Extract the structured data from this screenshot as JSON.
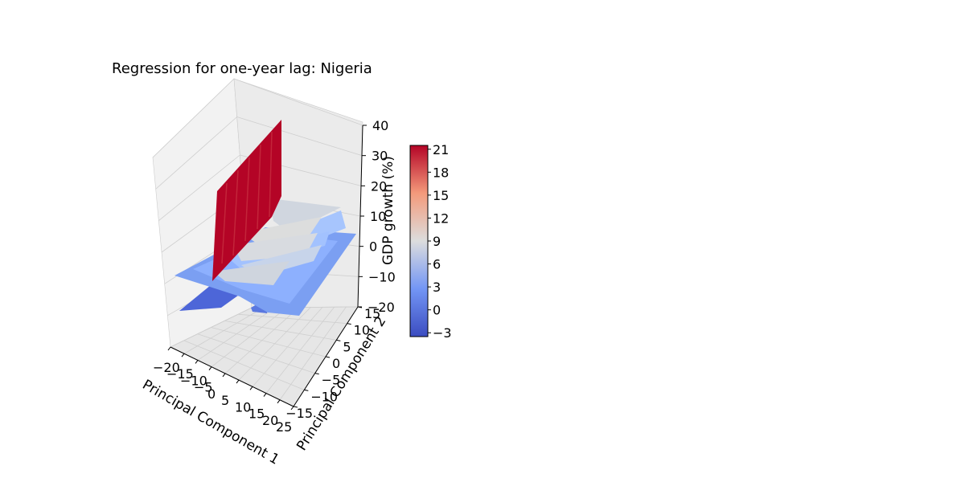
{
  "chart_data": {
    "type": "surface3d",
    "title": "Regression for one-year lag: Nigeria",
    "xlabel": "Principal Component 1",
    "ylabel": "Principal Component 2",
    "zlabel": "GDP growth (%)",
    "xlim": [
      -20,
      25
    ],
    "ylim": [
      -15,
      15
    ],
    "zlim": [
      -20,
      40
    ],
    "x_ticks": [
      "−20",
      "−15",
      "−10",
      "−5",
      "0",
      "5",
      "10",
      "15",
      "20",
      "25"
    ],
    "y_ticks": [
      "−15",
      "−10",
      "−5",
      "0",
      "5",
      "10",
      "15"
    ],
    "z_ticks": [
      "−20",
      "−10",
      "0",
      "10",
      "20",
      "30",
      "40"
    ],
    "grid": true,
    "colormap": "coolwarm",
    "colorbar": {
      "min": -3.5,
      "max": 21.5,
      "ticks": [
        "−3",
        "0",
        "3",
        "6",
        "9",
        "12",
        "15",
        "18",
        "21"
      ]
    },
    "surface_regions": [
      {
        "description": "spike ridge",
        "x_range": [
          -10,
          0
        ],
        "y_range": [
          -5,
          12
        ],
        "z_value": 21
      },
      {
        "description": "plateau",
        "x_range": [
          -5,
          20
        ],
        "y_range": [
          -10,
          15
        ],
        "z_value": 8
      },
      {
        "description": "base sheet",
        "x_range": [
          -20,
          25
        ],
        "y_range": [
          -15,
          15
        ],
        "z_value": 4
      },
      {
        "description": "dip",
        "x_range": [
          -15,
          -5
        ],
        "y_range": [
          -15,
          -8
        ],
        "z_value": -3
      }
    ]
  }
}
